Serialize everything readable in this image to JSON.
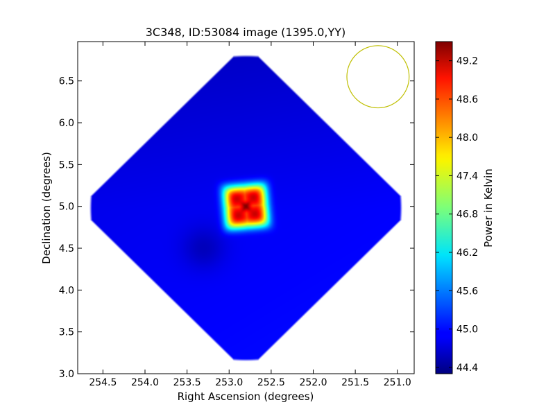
{
  "chart_data": {
    "type": "heatmap",
    "title": "3C348, ID:53084 image (1395.0,YY)",
    "xlabel": "Right Ascension (degrees)",
    "ylabel": "Declination (degrees)",
    "xlim": [
      254.8,
      250.8
    ],
    "ylim": [
      3.0,
      6.97
    ],
    "x_ticks": [
      254.5,
      254.0,
      253.5,
      253.0,
      252.5,
      252.0,
      251.5,
      251.0
    ],
    "x_tick_labels": [
      "254.5",
      "254.0",
      "253.5",
      "253.0",
      "252.5",
      "252.0",
      "251.5",
      "251.0"
    ],
    "y_ticks": [
      3.0,
      3.5,
      4.0,
      4.5,
      5.0,
      5.5,
      6.0,
      6.5
    ],
    "y_tick_labels": [
      "3.0",
      "3.5",
      "4.0",
      "4.5",
      "5.0",
      "5.5",
      "6.0",
      "6.5"
    ],
    "colormap": "jet",
    "colorbar": {
      "label": "Power in Kelvin",
      "vmin": 44.3,
      "vmax": 49.5,
      "ticks": [
        44.4,
        45.0,
        45.6,
        46.2,
        46.8,
        47.4,
        48.0,
        48.6,
        49.2
      ],
      "tick_labels": [
        "44.4",
        "45.0",
        "45.6",
        "46.2",
        "46.8",
        "47.4",
        "48.0",
        "48.6",
        "49.2"
      ]
    },
    "map": {
      "shape": "diamond",
      "center": [
        252.8,
        4.98
      ],
      "half_width_ra": 2.0,
      "half_width_dec": 1.97,
      "background_level": 44.9,
      "source": {
        "ra": 252.8,
        "dec": 5.0,
        "peak": 49.5,
        "half_width": 0.45,
        "hole_level": 46.0,
        "hole_half_width": 0.28
      },
      "faint_spot": {
        "ra": 253.3,
        "dec": 4.5,
        "level": 44.6
      }
    },
    "beam": {
      "ra": 251.23,
      "dec": 6.55,
      "radius_deg": 0.37,
      "color": "#bfbf00"
    }
  }
}
